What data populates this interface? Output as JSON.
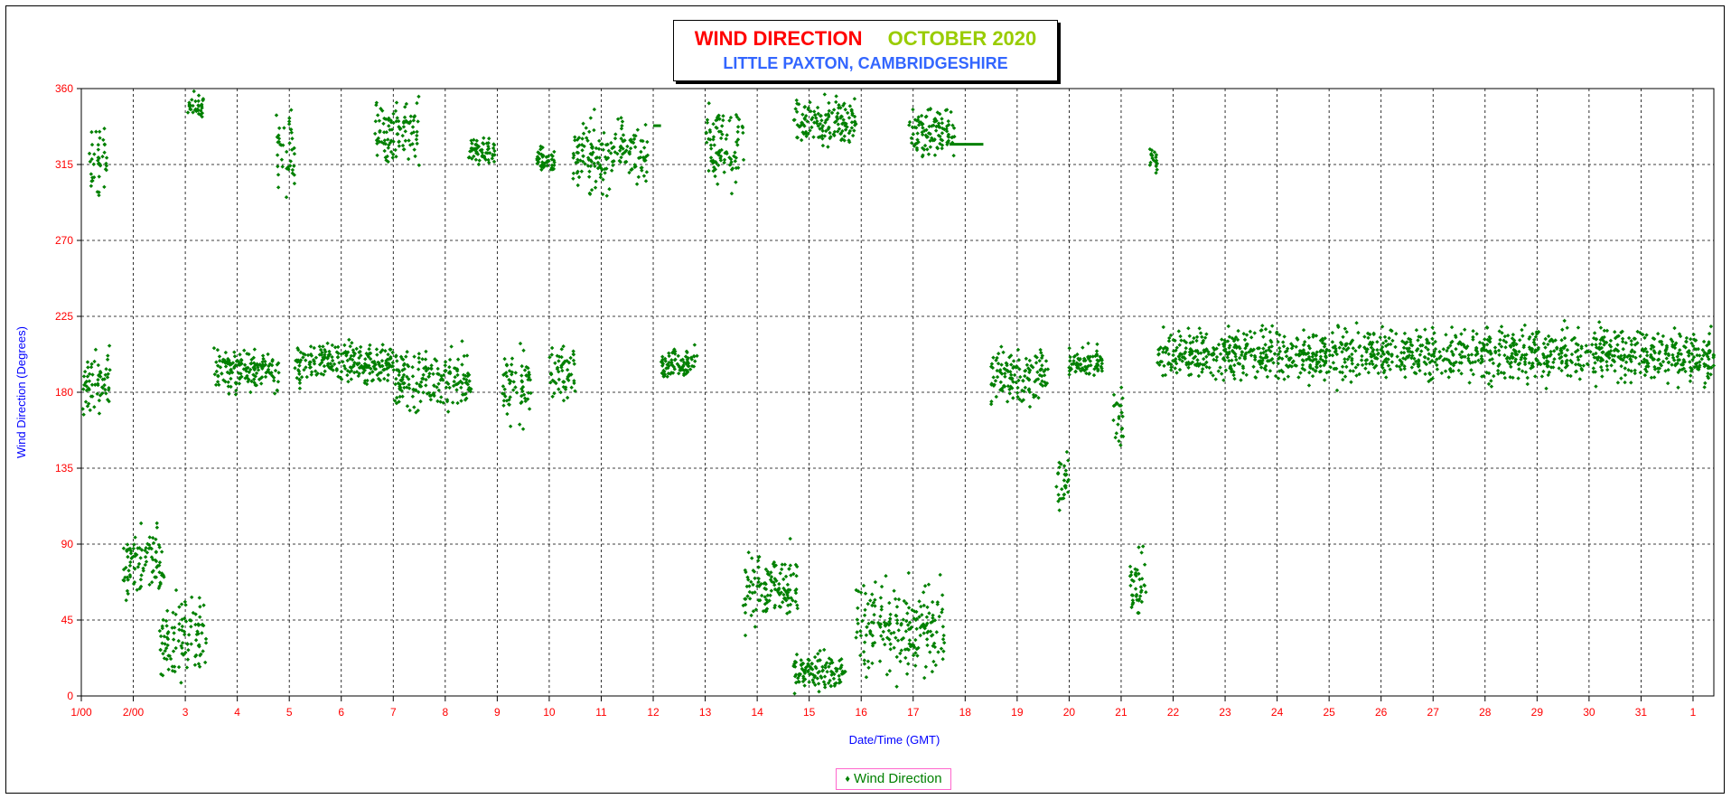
{
  "chart_data": {
    "type": "scatter",
    "title": "WIND DIRECTION",
    "title_month": "OCTOBER 2020",
    "subtitle": "LITTLE PAXTON, CAMBRIDGESHIRE",
    "xlabel": "Date/Time (GMT)",
    "ylabel": "Wind Direction (Degrees)",
    "ylim": [
      0,
      360
    ],
    "xlim": [
      1,
      32.4
    ],
    "y_ticks": [
      0,
      45,
      90,
      135,
      180,
      225,
      270,
      315,
      360
    ],
    "x_tick_labels": [
      "1/00",
      "2/00",
      "3",
      "4",
      "5",
      "6",
      "7",
      "8",
      "9",
      "10",
      "11",
      "12",
      "13",
      "14",
      "15",
      "16",
      "17",
      "18",
      "19",
      "20",
      "21",
      "22",
      "23",
      "24",
      "25",
      "26",
      "27",
      "28",
      "29",
      "30",
      "31",
      "1"
    ],
    "grid": true,
    "legend_position": "bottom-center",
    "colors": {
      "series": "#008000",
      "axis_text": "#ff0000",
      "ylabel": "#0000ff",
      "title": "#ff0000",
      "month": "#99cc00",
      "subtitle": "#3366ff"
    },
    "series": [
      {
        "name": "Wind Direction",
        "clusters": [
          {
            "x": [
              1.0,
              1.55
            ],
            "y": [
              160,
              215
            ]
          },
          {
            "x": [
              1.15,
              1.5
            ],
            "y": [
              285,
              345
            ]
          },
          {
            "x": [
              1.8,
              2.6
            ],
            "y": [
              45,
              115
            ]
          },
          {
            "x": [
              2.5,
              3.4
            ],
            "y": [
              2,
              70
            ]
          },
          {
            "x": [
              3.05,
              3.35
            ],
            "y": [
              340,
              360
            ]
          },
          {
            "x": [
              3.55,
              4.8
            ],
            "y": [
              175,
              210
            ]
          },
          {
            "x": [
              4.75,
              5.1
            ],
            "y": [
              290,
              360
            ]
          },
          {
            "x": [
              5.1,
              7.0
            ],
            "y": [
              180,
              215
            ]
          },
          {
            "x": [
              6.65,
              7.5
            ],
            "y": [
              310,
              360
            ]
          },
          {
            "x": [
              7.0,
              8.5
            ],
            "y": [
              160,
              215
            ]
          },
          {
            "x": [
              8.45,
              8.95
            ],
            "y": [
              310,
              335
            ]
          },
          {
            "x": [
              9.1,
              9.65
            ],
            "y": [
              155,
              215
            ]
          },
          {
            "x": [
              9.75,
              10.1
            ],
            "y": [
              305,
              330
            ]
          },
          {
            "x": [
              10.0,
              10.5
            ],
            "y": [
              170,
              215
            ]
          },
          {
            "x": [
              10.45,
              11.9
            ],
            "y": [
              290,
              350
            ]
          },
          {
            "x": [
              12.15,
              12.85
            ],
            "y": [
              185,
              210
            ]
          },
          {
            "x": [
              13.0,
              13.75
            ],
            "y": [
              295,
              360
            ]
          },
          {
            "x": [
              13.7,
              14.8
            ],
            "y": [
              30,
              95
            ]
          },
          {
            "x": [
              14.7,
              15.9
            ],
            "y": [
              320,
              360
            ]
          },
          {
            "x": [
              14.7,
              15.7
            ],
            "y": [
              0,
              30
            ]
          },
          {
            "x": [
              15.9,
              17.6
            ],
            "y": [
              0,
              80
            ]
          },
          {
            "x": [
              16.9,
              17.8
            ],
            "y": [
              310,
              360
            ]
          },
          {
            "x": [
              18.5,
              19.6
            ],
            "y": [
              165,
              215
            ]
          },
          {
            "x": [
              19.75,
              20.0
            ],
            "y": [
              105,
              150
            ]
          },
          {
            "x": [
              20.0,
              20.65
            ],
            "y": [
              185,
              210
            ]
          },
          {
            "x": [
              20.85,
              21.05
            ],
            "y": [
              135,
              195
            ]
          },
          {
            "x": [
              21.15,
              21.5
            ],
            "y": [
              35,
              100
            ]
          },
          {
            "x": [
              21.55,
              21.7
            ],
            "y": [
              305,
              330
            ]
          },
          {
            "x": [
              21.7,
              32.4
            ],
            "y": [
              180,
              225
            ]
          }
        ],
        "line_segments": [
          {
            "x": [
              12.0,
              12.15
            ],
            "y": 338
          },
          {
            "x": [
              17.7,
              18.35
            ],
            "y": 327
          }
        ]
      }
    ]
  },
  "legend": {
    "label": "Wind Direction",
    "marker": "♦"
  }
}
